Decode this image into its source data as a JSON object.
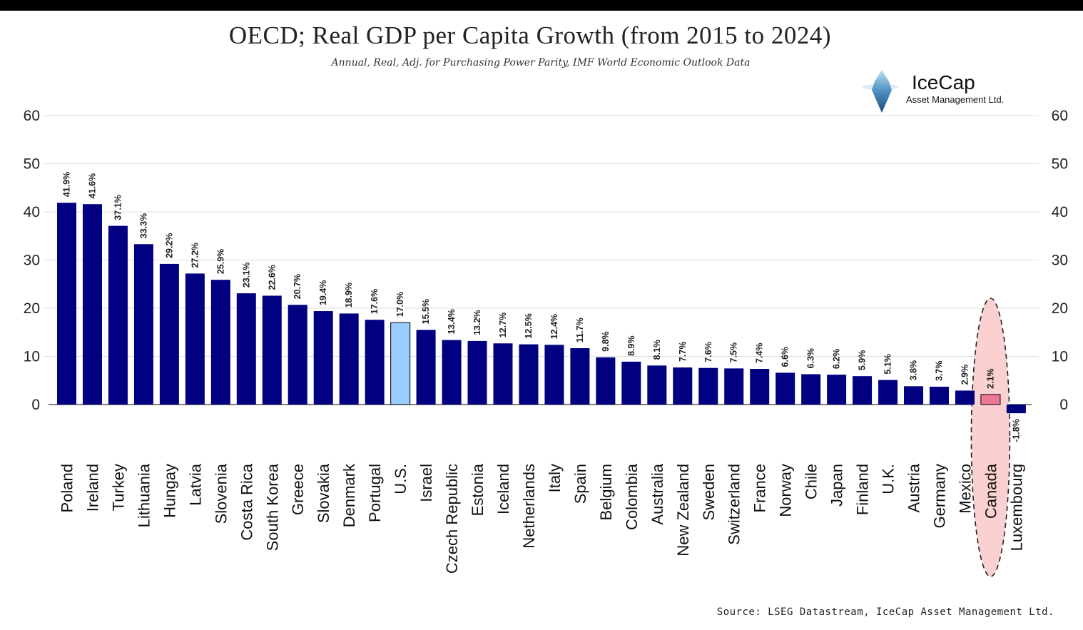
{
  "chart_data": {
    "type": "bar",
    "title": "OECD; Real GDP per Capita Growth (from 2015 to 2024)",
    "subtitle": "Annual, Real, Adj. for Purchasing Power Parity, IMF World Economic Outlook Data",
    "source": "Source: LSEG Datastream, IceCap Asset Management Ltd.",
    "ylim": [
      -2,
      60
    ],
    "yticks": [
      0,
      10,
      20,
      30,
      40,
      50,
      60
    ],
    "grid": true,
    "categories": [
      "Poland",
      "Ireland",
      "Turkey",
      "Lithuania",
      "Hungay",
      "Latvia",
      "Slovenia",
      "Costa Rica",
      "South Korea",
      "Greece",
      "Slovakia",
      "Denmark",
      "Portugal",
      "U.S.",
      "Israel",
      "Czech Republic",
      "Estonia",
      "Iceland",
      "Netherlands",
      "Italy",
      "Spain",
      "Belgium",
      "Colombia",
      "Australia",
      "New Zealand",
      "Sweden",
      "Switzerland",
      "France",
      "Norway",
      "Chile",
      "Japan",
      "Finland",
      "U.K.",
      "Austria",
      "Germany",
      "Mexico",
      "Canada",
      "Luxembourg"
    ],
    "values": [
      41.9,
      41.6,
      37.1,
      33.3,
      29.2,
      27.2,
      25.9,
      23.1,
      22.6,
      20.7,
      19.4,
      18.9,
      17.6,
      17.0,
      15.5,
      13.4,
      13.2,
      12.7,
      12.5,
      12.4,
      11.7,
      9.8,
      8.9,
      8.1,
      7.7,
      7.6,
      7.5,
      7.4,
      6.6,
      6.3,
      6.2,
      5.9,
      5.1,
      3.8,
      3.7,
      2.9,
      2.1,
      -1.8
    ],
    "labels": [
      "41.9%",
      "41.6%",
      "37.1%",
      "33.3%",
      "29.2%",
      "27.2%",
      "25.9%",
      "23.1%",
      "22.6%",
      "20.7%",
      "19.4%",
      "18.9%",
      "17.6%",
      "17.0%",
      "15.5%",
      "13.4%",
      "13.2%",
      "12.7%",
      "12.5%",
      "12.4%",
      "11.7%",
      "9.8%",
      "8.9%",
      "8.1%",
      "7.7%",
      "7.6%",
      "7.5%",
      "7.4%",
      "6.6%",
      "6.3%",
      "6.2%",
      "5.9%",
      "5.1%",
      "3.8%",
      "3.7%",
      "2.9%",
      "2.1%",
      "-1.8%"
    ],
    "highlight": {
      "U.S.": "#99ccff",
      "Canada": "#ee7799"
    },
    "highlight_ellipse": "Canada"
  },
  "colors": {
    "bar": "#000080",
    "us_bar": "#99ccff",
    "canada_bar": "#ee7799",
    "ellipse_fill": "#fad0d0",
    "grid": "#dddddd"
  },
  "logo": {
    "name": "IceCap",
    "subtitle": "Asset Management Ltd.",
    "icon": "iceberg-icon"
  }
}
